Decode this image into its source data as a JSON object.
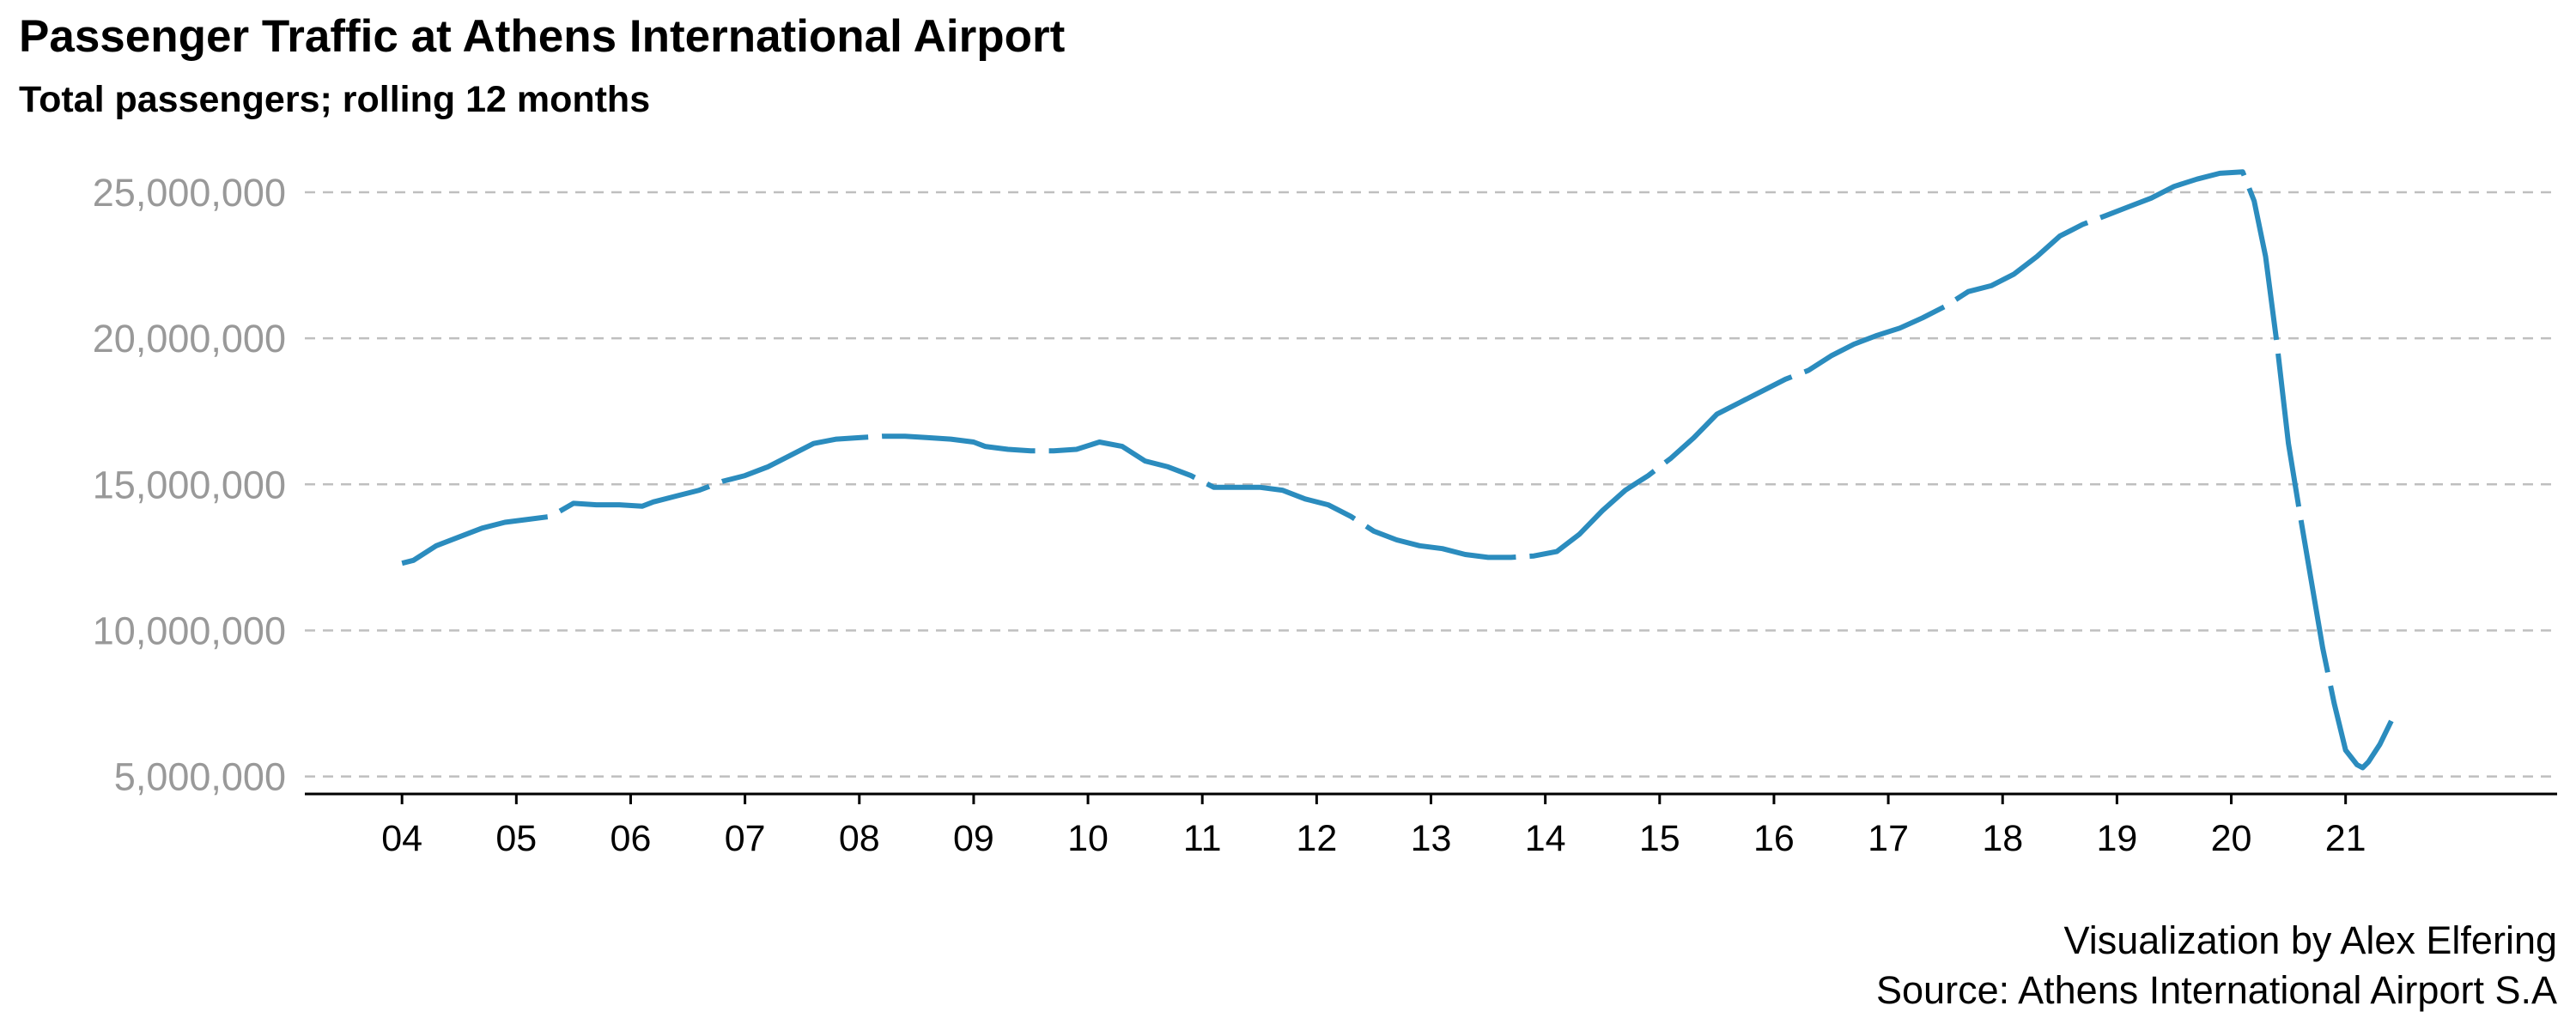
{
  "title": "Passenger Traffic at Athens International Airport",
  "subtitle": "Total passengers; rolling 12 months",
  "caption_line1": "Visualization by Alex Elfering",
  "caption_line2": "Source: Athens International Airport S.A",
  "colors": {
    "line": "#2b8cbe",
    "grid": "#bfbfbf",
    "axis": "#000000",
    "ytick": "#999999"
  },
  "chart_data": {
    "type": "line",
    "title": "Passenger Traffic at Athens International Airport",
    "subtitle": "Total passengers; rolling 12 months",
    "xlabel": "",
    "ylabel": "",
    "xlim": [
      2003.15,
      2022.85
    ],
    "ylim": [
      4400000,
      26000000
    ],
    "x_ticks": [
      2004,
      2005,
      2006,
      2007,
      2008,
      2009,
      2010,
      2011,
      2012,
      2013,
      2014,
      2015,
      2016,
      2017,
      2018,
      2019,
      2020,
      2021
    ],
    "x_tick_labels": [
      "04",
      "05",
      "06",
      "07",
      "08",
      "09",
      "10",
      "11",
      "12",
      "13",
      "14",
      "15",
      "16",
      "17",
      "18",
      "19",
      "20",
      "21"
    ],
    "y_ticks": [
      5000000,
      10000000,
      15000000,
      20000000,
      25000000
    ],
    "y_tick_labels": [
      "5,000,000",
      "10,000,000",
      "15,000,000",
      "20,000,000",
      "25,000,000"
    ],
    "grid": "horizontal dashed",
    "legend": "none",
    "series": [
      {
        "line_style": "dashed",
        "x": [
          2004.0,
          2004.1,
          2004.3,
          2004.5,
          2004.7,
          2004.9,
          2005.1,
          2005.3,
          2005.5,
          2005.7,
          2005.9,
          2006.1,
          2006.2,
          2006.4,
          2006.6,
          2006.8,
          2007.0,
          2007.2,
          2007.4,
          2007.6,
          2007.8,
          2008.0,
          2008.2,
          2008.4,
          2008.6,
          2008.8,
          2009.0,
          2009.1,
          2009.3,
          2009.5,
          2009.7,
          2009.9,
          2010.1,
          2010.3,
          2010.5,
          2010.7,
          2010.9,
          2011.1,
          2011.3,
          2011.5,
          2011.7,
          2011.9,
          2012.1,
          2012.3,
          2012.5,
          2012.7,
          2012.9,
          2013.1,
          2013.3,
          2013.5,
          2013.7,
          2013.9,
          2014.1,
          2014.3,
          2014.5,
          2014.7,
          2014.9,
          2015.1,
          2015.3,
          2015.5,
          2015.7,
          2015.9,
          2016.1,
          2016.3,
          2016.5,
          2016.7,
          2016.9,
          2017.1,
          2017.3,
          2017.5,
          2017.7,
          2017.9,
          2018.1,
          2018.3,
          2018.5,
          2018.7,
          2018.9,
          2019.1,
          2019.3,
          2019.5,
          2019.7,
          2019.9,
          2020.1,
          2020.2,
          2020.3,
          2020.4,
          2020.5,
          2020.6,
          2020.7,
          2020.8,
          2020.9,
          2021.0,
          2021.1,
          2021.15,
          2021.2,
          2021.3,
          2021.4
        ],
        "values": [
          12300000,
          12400000,
          12900000,
          13200000,
          13500000,
          13700000,
          13800000,
          13900000,
          14350000,
          14300000,
          14300000,
          14250000,
          14400000,
          14600000,
          14800000,
          15100000,
          15300000,
          15600000,
          16000000,
          16400000,
          16550000,
          16600000,
          16650000,
          16650000,
          16600000,
          16550000,
          16450000,
          16300000,
          16200000,
          16150000,
          16150000,
          16200000,
          16450000,
          16300000,
          15800000,
          15600000,
          15300000,
          14900000,
          14900000,
          14900000,
          14800000,
          14500000,
          14300000,
          13900000,
          13400000,
          13100000,
          12900000,
          12800000,
          12600000,
          12500000,
          12500000,
          12550000,
          12700000,
          13300000,
          14100000,
          14800000,
          15300000,
          15900000,
          16600000,
          17400000,
          17800000,
          18200000,
          18600000,
          18900000,
          19400000,
          19800000,
          20100000,
          20350000,
          20700000,
          21100000,
          21600000,
          21800000,
          22200000,
          22800000,
          23500000,
          23900000,
          24200000,
          24500000,
          24800000,
          25200000,
          25450000,
          25650000,
          25700000,
          24700000,
          22800000,
          19800000,
          16400000,
          14000000,
          11700000,
          9400000,
          7500000,
          5900000,
          5400000,
          5300000,
          5500000,
          6100000,
          6900000
        ]
      }
    ]
  }
}
